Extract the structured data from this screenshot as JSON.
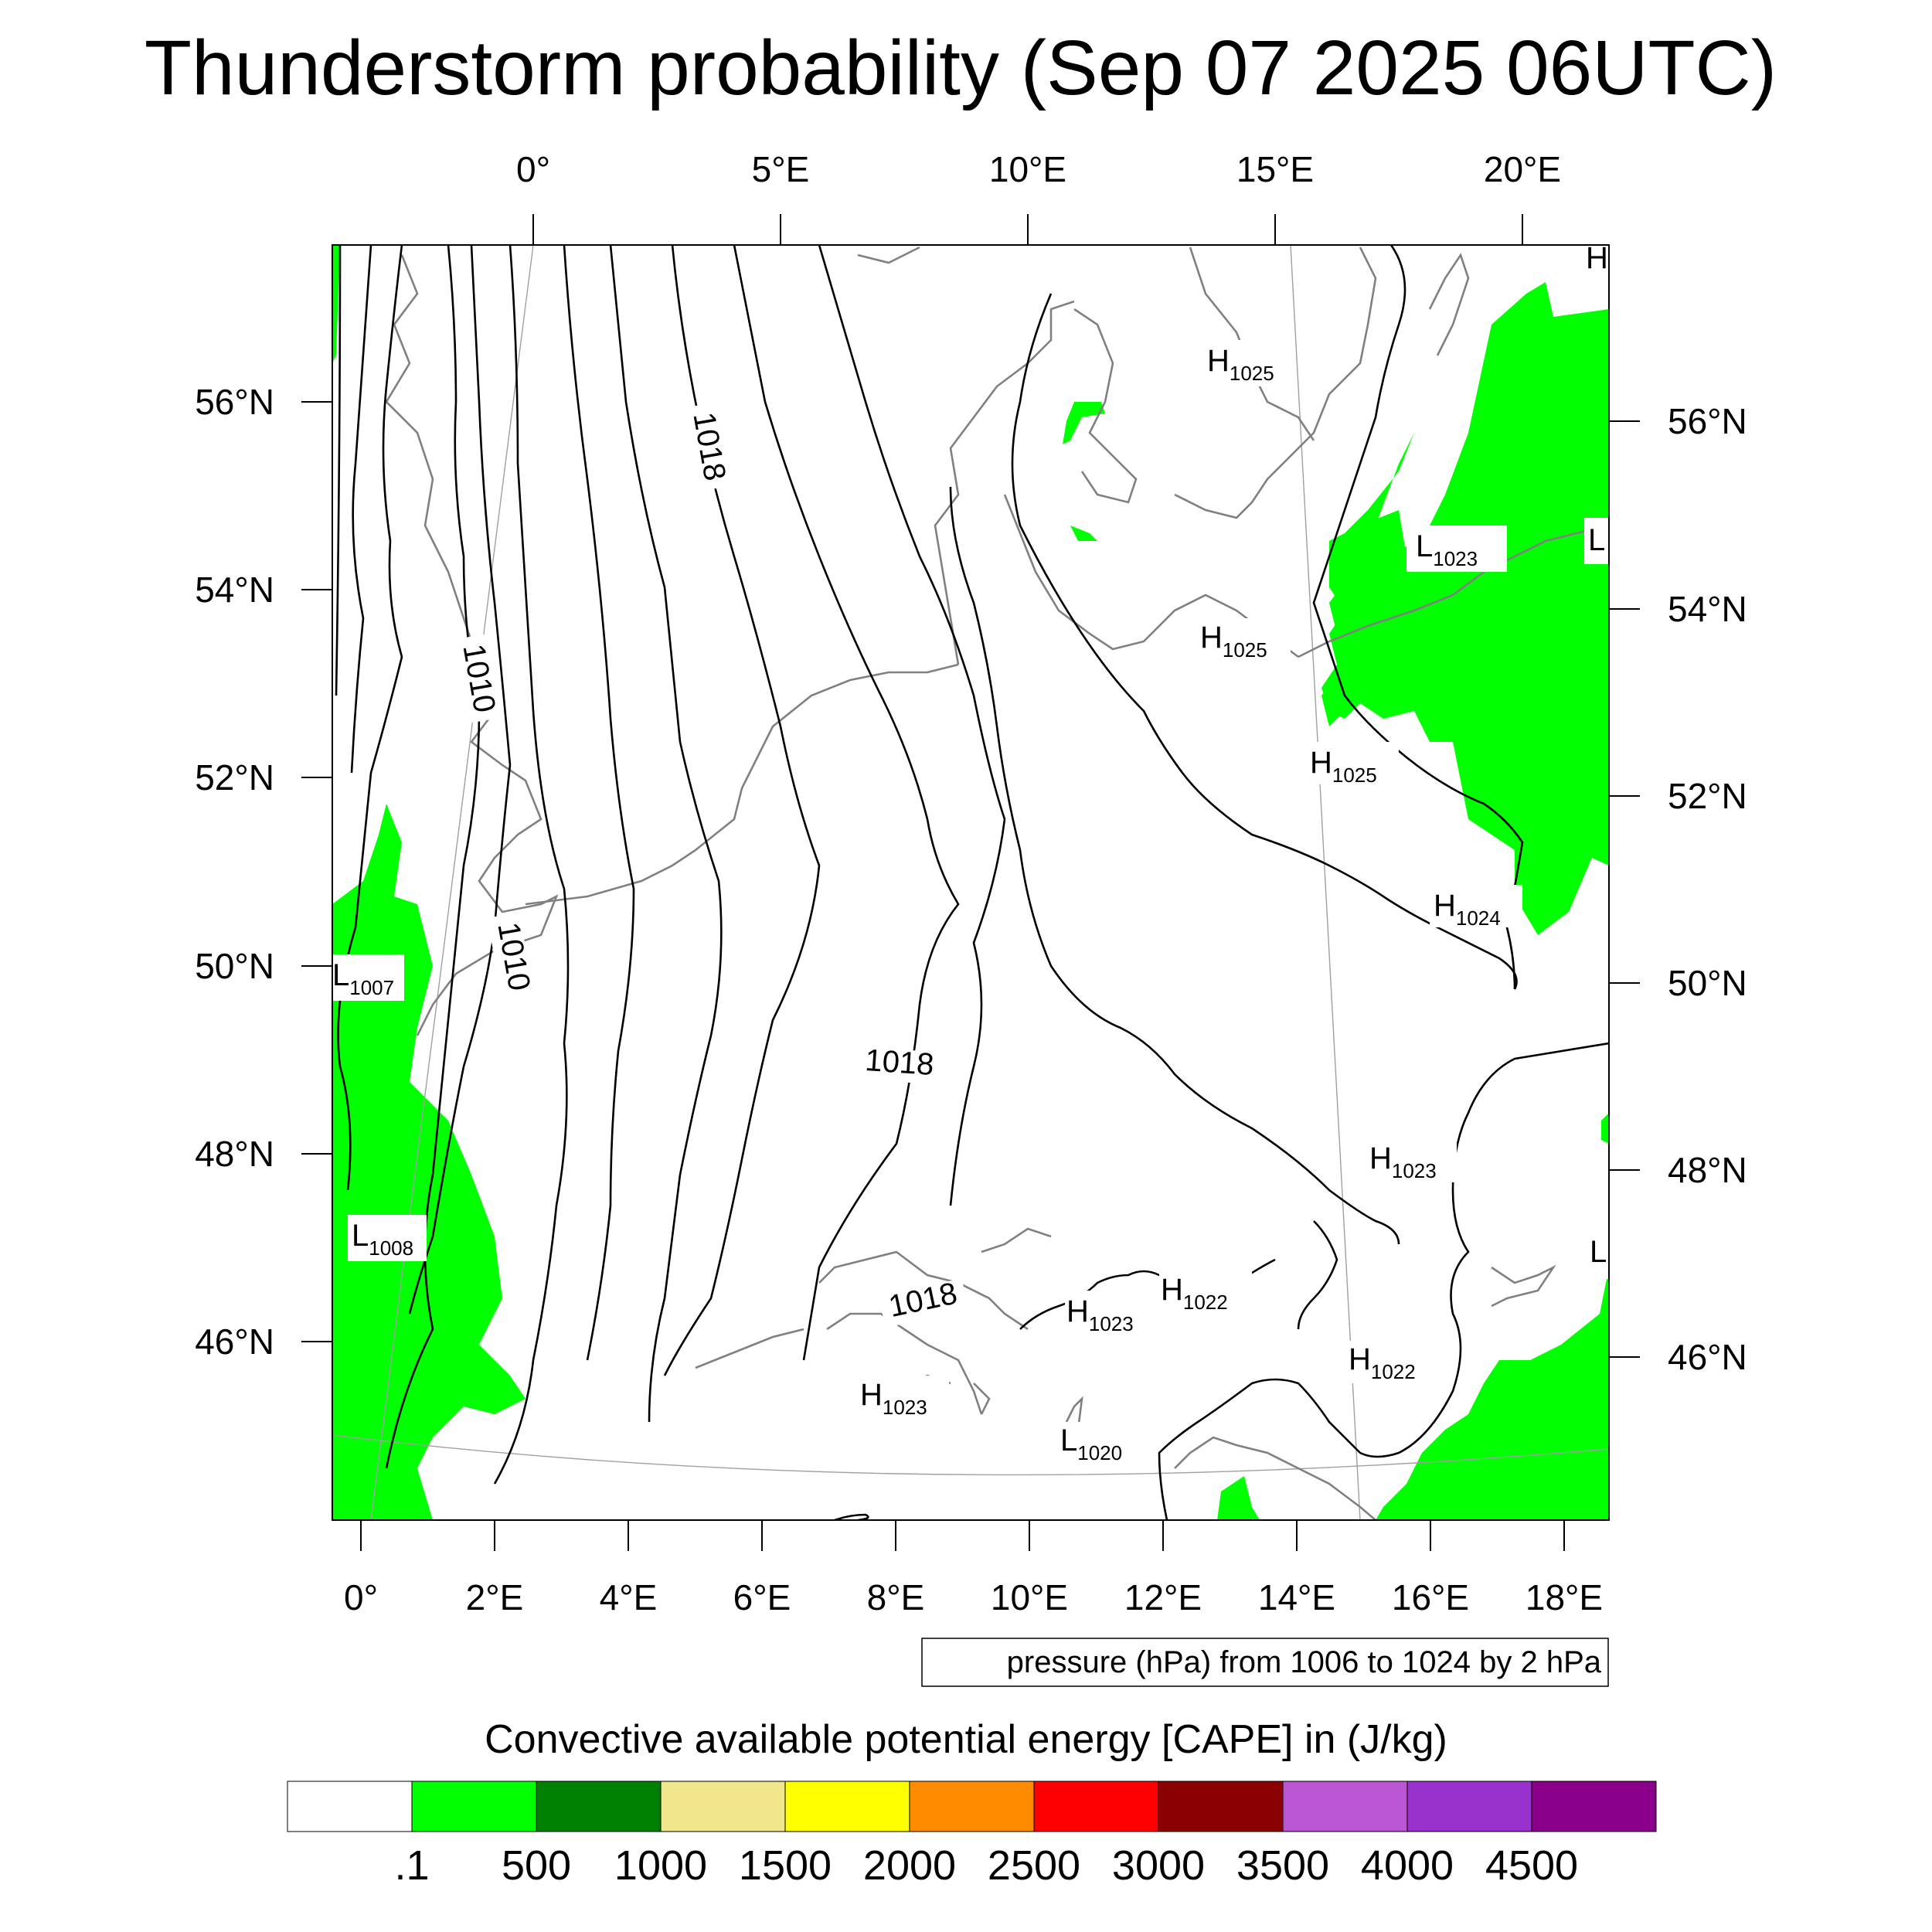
{
  "title": "Thunderstorm probability (Sep 07 2025 06UTC)",
  "top_lon_labels": [
    "0°",
    "5°E",
    "10°E",
    "15°E",
    "20°E"
  ],
  "bottom_lon_labels": [
    "0°",
    "2°E",
    "4°E",
    "6°E",
    "8°E",
    "10°E",
    "12°E",
    "14°E",
    "16°E",
    "18°E"
  ],
  "left_lat_labels": [
    "56°N",
    "54°N",
    "52°N",
    "50°N",
    "48°N",
    "46°N"
  ],
  "right_lat_labels": [
    "56°N",
    "54°N",
    "52°N",
    "50°N",
    "48°N",
    "46°N"
  ],
  "contour_labels": [
    "1018",
    "1010",
    "1010",
    "1018",
    "1018"
  ],
  "pressure_centers": [
    {
      "type": "H",
      "value": ""
    },
    {
      "type": "H",
      "value": "1025"
    },
    {
      "type": "L",
      "value": "1023"
    },
    {
      "type": "L",
      "value": ""
    },
    {
      "type": "H",
      "value": "1025"
    },
    {
      "type": "H",
      "value": "1025"
    },
    {
      "type": "H",
      "value": "1024"
    },
    {
      "type": "L",
      "value": "1007"
    },
    {
      "type": "H",
      "value": "1023"
    },
    {
      "type": "L",
      "value": "1008"
    },
    {
      "type": "L",
      "value": ""
    },
    {
      "type": "H",
      "value": "1022"
    },
    {
      "type": "H",
      "value": "1023"
    },
    {
      "type": "H",
      "value": "1022"
    },
    {
      "type": "H",
      "value": "1023"
    },
    {
      "type": "L",
      "value": "1020"
    }
  ],
  "contour_note": "pressure (hPa) from 1006 to 1024 by 2 hPa",
  "colorbar": {
    "title": "Convective available potential energy [CAPE] in (J/kg)",
    "labels": [
      ".1",
      "500",
      "1000",
      "1500",
      "2000",
      "2500",
      "3000",
      "3500",
      "4000",
      "4500"
    ],
    "colors": [
      "#ffffff",
      "#00ff00",
      "#008000",
      "#f0e68c",
      "#ffff00",
      "#ff8c00",
      "#ff0000",
      "#8b0000",
      "#ba55d3",
      "#9932cc",
      "#8b008b"
    ]
  },
  "colors": {
    "cape_fill": "#00ff00",
    "coastline": "#808080",
    "isobar": "#000000"
  }
}
